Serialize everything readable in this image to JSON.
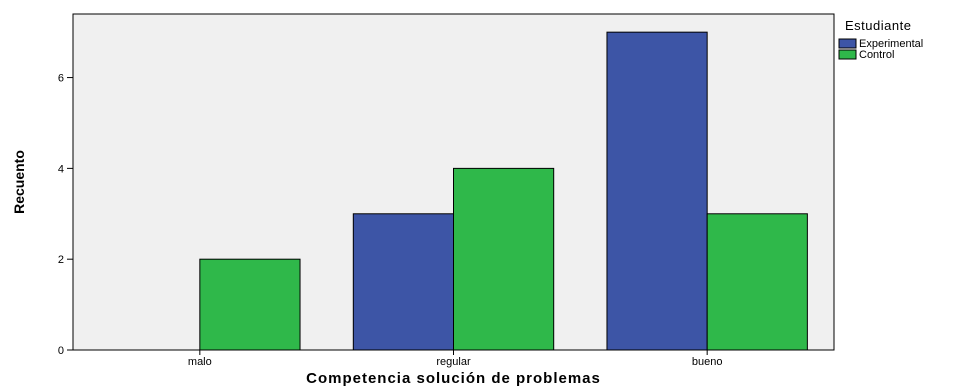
{
  "chart_data": {
    "type": "bar",
    "categories": [
      "malo",
      "regular",
      "bueno"
    ],
    "series": [
      {
        "name": "Experimental",
        "color": "#3d55a6",
        "values": [
          0,
          3,
          7
        ]
      },
      {
        "name": "Control",
        "color": "#2fb84a",
        "values": [
          2,
          4,
          3
        ]
      }
    ],
    "title": "",
    "xlabel": "Competencia solución de problemas",
    "ylabel": "Recuento",
    "ylim": [
      0,
      7.4
    ],
    "yticks": [
      0,
      2,
      4,
      6
    ],
    "grid": false,
    "legend": {
      "title": "Estudiante",
      "placement": "top-right"
    },
    "plot_background": "#f0f0f0"
  }
}
